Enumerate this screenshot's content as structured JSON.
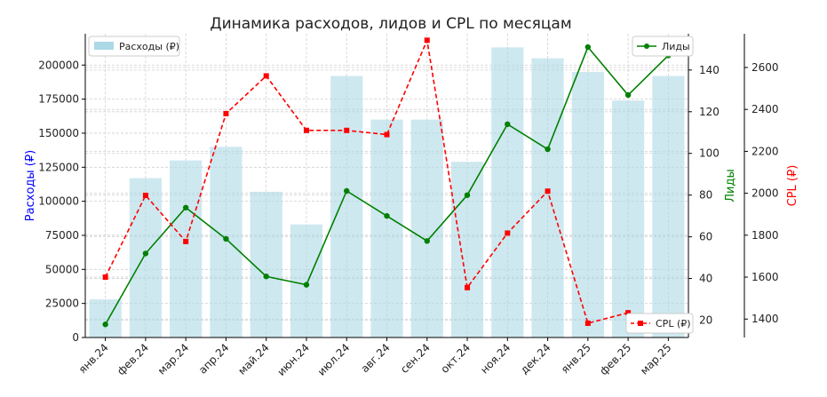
{
  "chart_data": {
    "type": "bar+line",
    "title": "Динамика расходов, лидов и CPL по месяцам",
    "categories": [
      "янв.24",
      "фев.24",
      "мар.24",
      "апр.24",
      "май.24",
      "июн.24",
      "июл.24",
      "авг.24",
      "сен.24",
      "окт.24",
      "ноя.24",
      "дек.24",
      "янв.25",
      "фев.25",
      "мар.25"
    ],
    "series": [
      {
        "name": "Расходы (₽)",
        "kind": "bar",
        "axis": "left",
        "color": "#add8e6",
        "values": [
          28000,
          117000,
          130000,
          140000,
          107000,
          83000,
          192000,
          160000,
          160000,
          129000,
          213000,
          205000,
          195000,
          174000,
          192000
        ]
      },
      {
        "name": "Лиды",
        "kind": "line",
        "axis": "right1",
        "color": "#008000",
        "values": [
          18,
          52,
          74,
          59,
          41,
          37,
          82,
          70,
          58,
          80,
          114,
          102,
          151,
          128,
          147
        ]
      },
      {
        "name": "CPL (₽)",
        "kind": "line-dashed",
        "axis": "right2",
        "color": "#ff0000",
        "values": [
          1600,
          1990,
          1770,
          2380,
          2560,
          2300,
          2300,
          2280,
          2730,
          1550,
          1810,
          2010,
          1380,
          1430,
          1370
        ]
      }
    ],
    "axes": {
      "left": {
        "label": "Расходы (₽)",
        "color": "#0000ff",
        "ylim": [
          0,
          223000
        ],
        "ticks": [
          "0",
          "25000",
          "50000",
          "75000",
          "100000",
          "125000",
          "150000",
          "175000",
          "200000"
        ]
      },
      "right1": {
        "label": "Лиды",
        "color": "#008000",
        "ylim": [
          11.7,
          157.4
        ],
        "ticks": [
          "20",
          "40",
          "60",
          "80",
          "100",
          "120",
          "140"
        ]
      },
      "right2": {
        "label": "CPL (₽)",
        "color": "#ff0000",
        "ylim": [
          1312,
          2761
        ],
        "ticks": [
          "1400",
          "1600",
          "1800",
          "2000",
          "2200",
          "2400",
          "2600"
        ]
      }
    },
    "grid": true,
    "legends": [
      {
        "series": "Расходы (₽)",
        "placement": "top-left"
      },
      {
        "series": "Лиды",
        "placement": "top-right"
      },
      {
        "series": "CPL (₽)",
        "placement": "bottom-right"
      }
    ]
  }
}
